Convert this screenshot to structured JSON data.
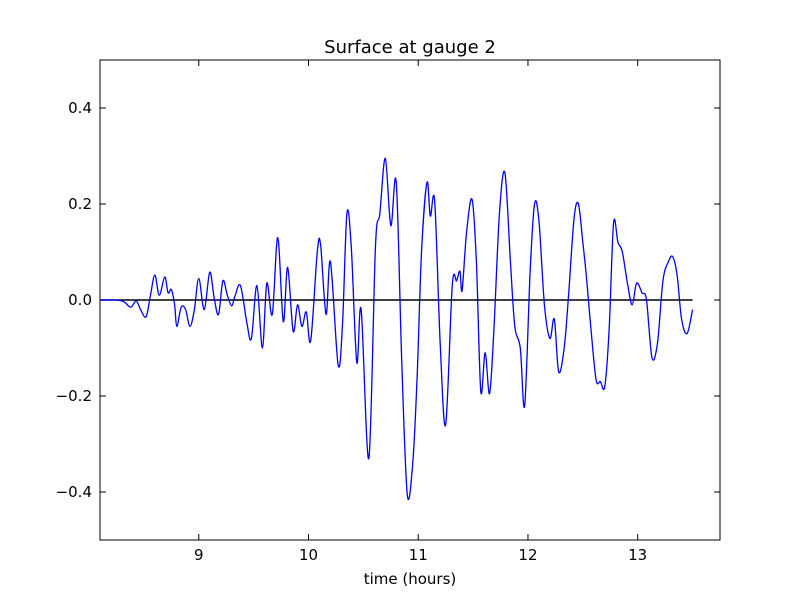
{
  "chart_data": {
    "type": "line",
    "title": "Surface at gauge 2",
    "xlabel": "time (hours)",
    "ylabel": "",
    "xlim": [
      8.1,
      13.75
    ],
    "ylim": [
      -0.5,
      0.5
    ],
    "xticks": [
      9,
      10,
      11,
      12,
      13
    ],
    "yticks": [
      -0.4,
      -0.2,
      0.0,
      0.2,
      0.4
    ],
    "xtick_labels": [
      "9",
      "10",
      "11",
      "12",
      "13"
    ],
    "ytick_labels": [
      "−0.4",
      "−0.2",
      "0.0",
      "0.2",
      "0.4"
    ],
    "grid": false,
    "legend": "none",
    "reference_line": {
      "y": 0.0,
      "x_range": [
        8.1,
        13.5
      ],
      "color": "#000000"
    },
    "series": [
      {
        "color": "#0000ff",
        "points": [
          [
            8.1,
            0.0
          ],
          [
            8.25,
            0.0
          ],
          [
            8.32,
            -0.004
          ],
          [
            8.38,
            -0.015
          ],
          [
            8.43,
            -0.002
          ],
          [
            8.47,
            -0.02
          ],
          [
            8.52,
            -0.035
          ],
          [
            8.56,
            0.01
          ],
          [
            8.6,
            0.052
          ],
          [
            8.64,
            0.01
          ],
          [
            8.69,
            0.048
          ],
          [
            8.72,
            0.015
          ],
          [
            8.75,
            0.022
          ],
          [
            8.78,
            -0.01
          ],
          [
            8.8,
            -0.055
          ],
          [
            8.84,
            -0.015
          ],
          [
            8.88,
            -0.02
          ],
          [
            8.92,
            -0.055
          ],
          [
            8.96,
            -0.02
          ],
          [
            9.0,
            0.045
          ],
          [
            9.05,
            -0.02
          ],
          [
            9.1,
            0.058
          ],
          [
            9.14,
            0.005
          ],
          [
            9.18,
            -0.03
          ],
          [
            9.22,
            0.04
          ],
          [
            9.26,
            0.01
          ],
          [
            9.3,
            -0.012
          ],
          [
            9.33,
            0.008
          ],
          [
            9.38,
            0.03
          ],
          [
            9.44,
            -0.05
          ],
          [
            9.48,
            -0.08
          ],
          [
            9.53,
            0.03
          ],
          [
            9.58,
            -0.1
          ],
          [
            9.62,
            0.035
          ],
          [
            9.67,
            -0.03
          ],
          [
            9.72,
            0.13
          ],
          [
            9.77,
            -0.045
          ],
          [
            9.81,
            0.068
          ],
          [
            9.86,
            -0.065
          ],
          [
            9.9,
            -0.01
          ],
          [
            9.94,
            -0.055
          ],
          [
            9.98,
            -0.025
          ],
          [
            10.02,
            -0.085
          ],
          [
            10.08,
            0.1
          ],
          [
            10.11,
            0.115
          ],
          [
            10.16,
            -0.03
          ],
          [
            10.2,
            0.08
          ],
          [
            10.27,
            -0.135
          ],
          [
            10.31,
            -0.05
          ],
          [
            10.35,
            0.18
          ],
          [
            10.39,
            0.11
          ],
          [
            10.44,
            -0.13
          ],
          [
            10.48,
            -0.02
          ],
          [
            10.55,
            -0.33
          ],
          [
            10.61,
            0.11
          ],
          [
            10.65,
            0.18
          ],
          [
            10.7,
            0.295
          ],
          [
            10.75,
            0.155
          ],
          [
            10.8,
            0.245
          ],
          [
            10.85,
            -0.13
          ],
          [
            10.9,
            -0.405
          ],
          [
            10.95,
            -0.34
          ],
          [
            10.99,
            -0.16
          ],
          [
            11.03,
            0.1
          ],
          [
            11.08,
            0.245
          ],
          [
            11.11,
            0.175
          ],
          [
            11.15,
            0.205
          ],
          [
            11.2,
            -0.09
          ],
          [
            11.25,
            -0.26
          ],
          [
            11.31,
            0.03
          ],
          [
            11.35,
            0.04
          ],
          [
            11.38,
            0.06
          ],
          [
            11.4,
            0.02
          ],
          [
            11.44,
            0.14
          ],
          [
            11.49,
            0.21
          ],
          [
            11.53,
            0.08
          ],
          [
            11.57,
            -0.19
          ],
          [
            11.61,
            -0.11
          ],
          [
            11.65,
            -0.195
          ],
          [
            11.69,
            -0.06
          ],
          [
            11.74,
            0.18
          ],
          [
            11.79,
            0.265
          ],
          [
            11.84,
            0.08
          ],
          [
            11.88,
            -0.055
          ],
          [
            11.93,
            -0.1
          ],
          [
            11.97,
            -0.22
          ],
          [
            12.02,
            0.06
          ],
          [
            12.06,
            0.2
          ],
          [
            12.1,
            0.165
          ],
          [
            12.15,
            -0.01
          ],
          [
            12.2,
            -0.08
          ],
          [
            12.24,
            -0.04
          ],
          [
            12.28,
            -0.15
          ],
          [
            12.33,
            -0.1
          ],
          [
            12.37,
            0.01
          ],
          [
            12.42,
            0.17
          ],
          [
            12.46,
            0.2
          ],
          [
            12.5,
            0.12
          ],
          [
            12.53,
            0.055
          ],
          [
            12.57,
            -0.05
          ],
          [
            12.62,
            -0.165
          ],
          [
            12.66,
            -0.17
          ],
          [
            12.7,
            -0.18
          ],
          [
            12.74,
            -0.06
          ],
          [
            12.78,
            0.16
          ],
          [
            12.82,
            0.12
          ],
          [
            12.86,
            0.1
          ],
          [
            12.91,
            0.03
          ],
          [
            12.95,
            -0.01
          ],
          [
            12.99,
            0.035
          ],
          [
            13.04,
            0.015
          ],
          [
            13.08,
            0.0
          ],
          [
            13.13,
            -0.12
          ],
          [
            13.18,
            -0.09
          ],
          [
            13.23,
            0.04
          ],
          [
            13.28,
            0.08
          ],
          [
            13.32,
            0.09
          ],
          [
            13.36,
            0.05
          ],
          [
            13.4,
            -0.04
          ],
          [
            13.45,
            -0.07
          ],
          [
            13.5,
            -0.02
          ]
        ]
      }
    ]
  }
}
